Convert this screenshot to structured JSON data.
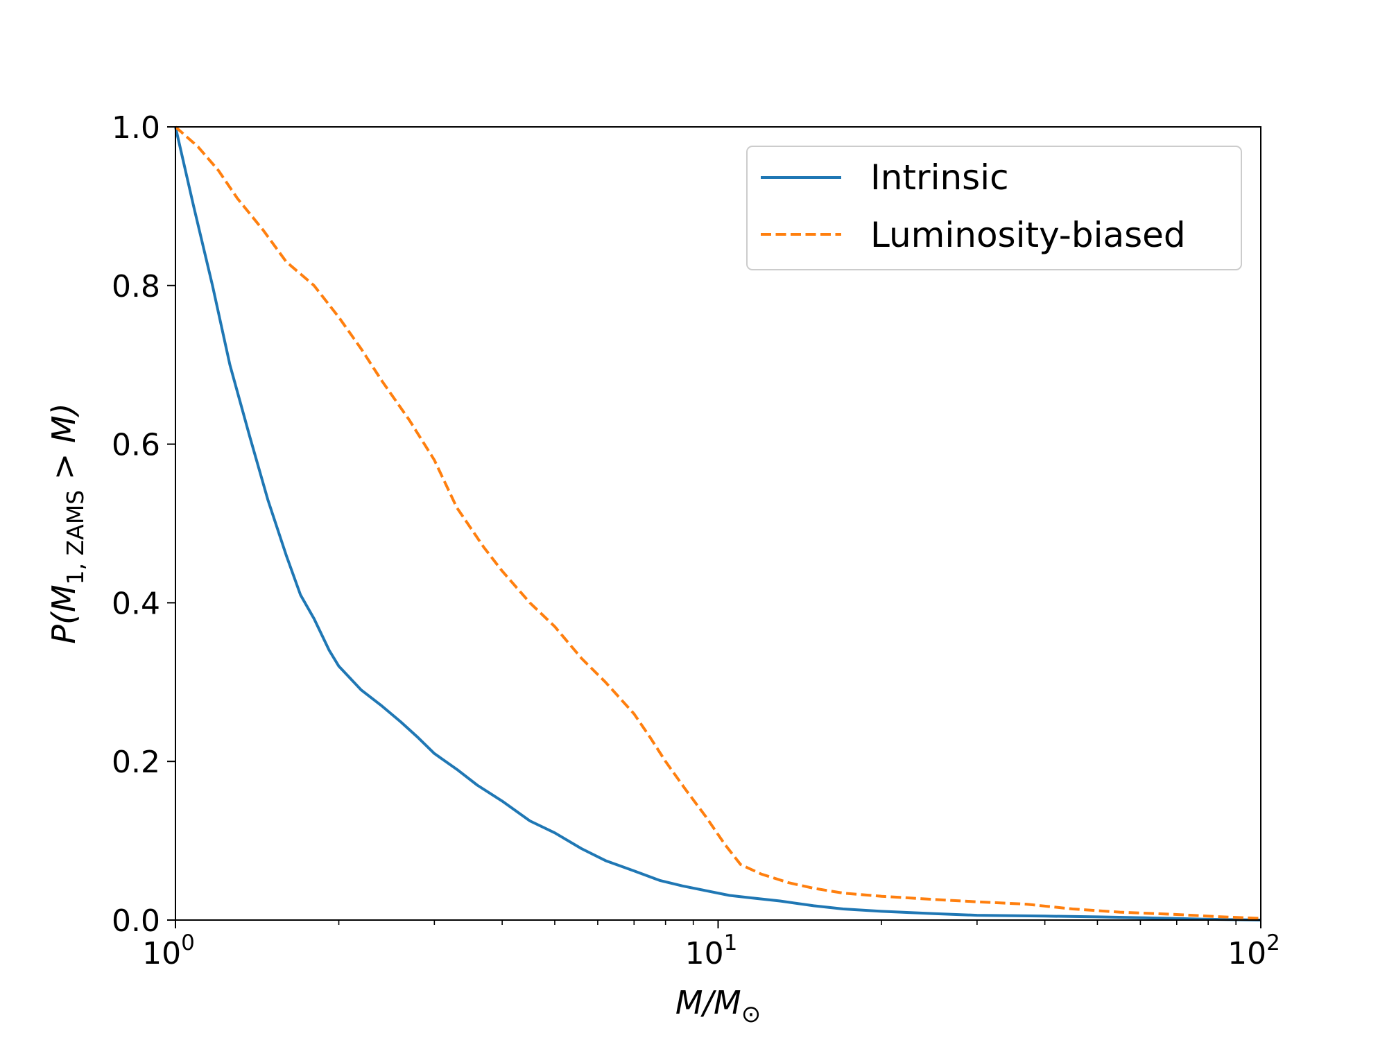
{
  "chart_data": {
    "type": "line",
    "xscale": "log",
    "xlim": [
      1,
      100
    ],
    "ylim": [
      0,
      1
    ],
    "xlabel": "M/M⊙",
    "ylabel": "P(M1,ZAMS > M)",
    "xlabel_parts": {
      "var": "M/M",
      "sub": "⊙"
    },
    "ylabel_parts": {
      "pre": "P(M",
      "sub": "1, ZAMS",
      "post": " > M)"
    },
    "x_ticks": [
      {
        "value": 1,
        "base": "10",
        "exp": "0"
      },
      {
        "value": 10,
        "base": "10",
        "exp": "1"
      },
      {
        "value": 100,
        "base": "10",
        "exp": "2"
      }
    ],
    "y_ticks": [
      {
        "value": 0.0,
        "label": "0.0"
      },
      {
        "value": 0.2,
        "label": "0.2"
      },
      {
        "value": 0.4,
        "label": "0.4"
      },
      {
        "value": 0.6,
        "label": "0.6"
      },
      {
        "value": 0.8,
        "label": "0.8"
      },
      {
        "value": 1.0,
        "label": "1.0"
      }
    ],
    "grid": false,
    "legend_position": "top-right",
    "series": [
      {
        "name": "Intrinsic",
        "color": "#1f77b4",
        "style": "solid",
        "x": [
          1.0,
          1.08,
          1.17,
          1.26,
          1.37,
          1.48,
          1.6,
          1.7,
          1.8,
          1.92,
          2.0,
          2.2,
          2.4,
          2.6,
          2.8,
          3.0,
          3.3,
          3.6,
          4.0,
          4.5,
          5.0,
          5.6,
          6.2,
          7.0,
          7.8,
          8.6,
          9.5,
          10.5,
          11.5,
          13.0,
          15.0,
          17.0,
          20.0,
          25.0,
          30.0,
          40.0,
          50.0,
          60.0,
          70.0,
          80.0,
          100.0
        ],
        "y": [
          1.0,
          0.9,
          0.8,
          0.7,
          0.61,
          0.53,
          0.46,
          0.41,
          0.38,
          0.34,
          0.32,
          0.29,
          0.27,
          0.25,
          0.23,
          0.21,
          0.19,
          0.17,
          0.15,
          0.125,
          0.11,
          0.09,
          0.075,
          0.062,
          0.05,
          0.043,
          0.037,
          0.031,
          0.028,
          0.024,
          0.018,
          0.014,
          0.011,
          0.008,
          0.006,
          0.005,
          0.004,
          0.003,
          0.002,
          0.001,
          0.0
        ]
      },
      {
        "name": "Luminosity-biased",
        "color": "#ff7f0e",
        "style": "dashed",
        "x": [
          1.0,
          1.1,
          1.2,
          1.3,
          1.45,
          1.6,
          1.8,
          2.0,
          2.2,
          2.4,
          2.7,
          3.0,
          3.3,
          3.7,
          4.0,
          4.5,
          5.0,
          5.6,
          6.2,
          7.0,
          7.5,
          8.0,
          8.7,
          9.5,
          10.3,
          11.0,
          12.0,
          13.5,
          15.0,
          17.0,
          20.0,
          25.0,
          30.0,
          37.0,
          45.0,
          55.0,
          70.0,
          85.0,
          100.0
        ],
        "y": [
          1.0,
          0.975,
          0.945,
          0.91,
          0.87,
          0.83,
          0.8,
          0.76,
          0.72,
          0.68,
          0.63,
          0.58,
          0.52,
          0.47,
          0.44,
          0.4,
          0.37,
          0.33,
          0.3,
          0.26,
          0.23,
          0.2,
          0.165,
          0.13,
          0.095,
          0.07,
          0.058,
          0.047,
          0.04,
          0.034,
          0.03,
          0.026,
          0.023,
          0.02,
          0.014,
          0.01,
          0.007,
          0.004,
          0.002
        ]
      }
    ]
  }
}
